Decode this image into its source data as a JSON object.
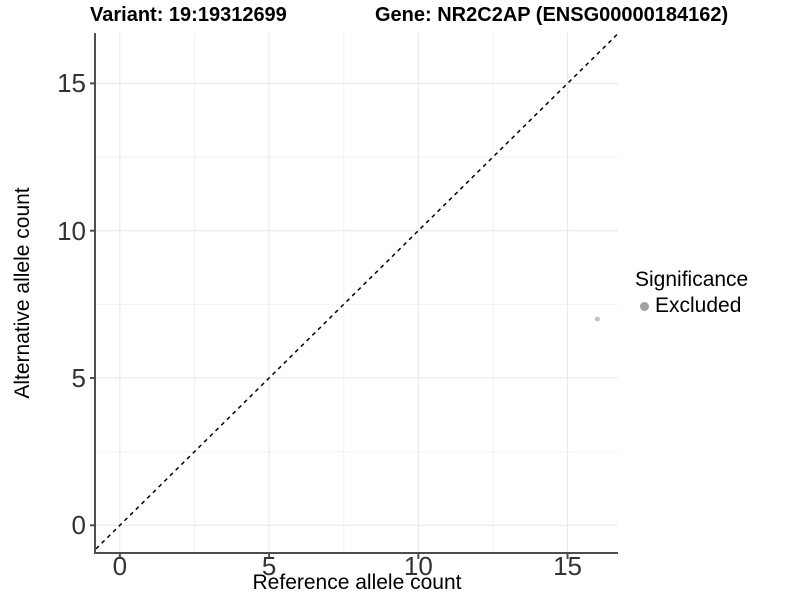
{
  "chart_data": {
    "type": "scatter",
    "title_left": "Variant: 19:19312699",
    "title_right": "Gene: NR2C2AP (ENSG00000184162)",
    "xlabel": "Reference allele count",
    "ylabel": "Alternative allele count",
    "xlim": [
      -0.8,
      16.69
    ],
    "ylim": [
      -0.94,
      16.71
    ],
    "x_ticks": [
      0,
      5,
      10,
      15
    ],
    "y_ticks": [
      0,
      5,
      10,
      15
    ],
    "x_minor_ticks": [
      2.5,
      7.5,
      12.5
    ],
    "y_minor_ticks": [
      2.5,
      7.5,
      12.5
    ],
    "grid": "major+minor",
    "reference_line": {
      "type": "identity y=x",
      "style": "dashed",
      "color": "#000000"
    },
    "series": [
      {
        "name": "Excluded",
        "color": "#c3c3c3",
        "points": [
          {
            "x": 16,
            "y": 7
          }
        ]
      }
    ],
    "marker_radius": 2.5,
    "legend": {
      "position": "right",
      "title": "Significance",
      "items": [
        {
          "label": "Excluded",
          "color": "#a0a0a0",
          "marker": "dot"
        }
      ]
    },
    "colors": {
      "background": "#ffffff",
      "grid_major": "#e6e6e6",
      "grid_minor": "#f2f2f2",
      "axis_line": "#4d4d4d",
      "tick_label": "#333333",
      "identity_line": "#000000"
    }
  }
}
